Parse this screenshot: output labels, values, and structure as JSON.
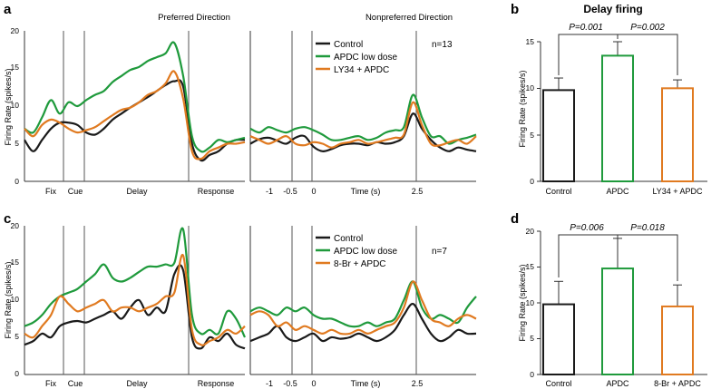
{
  "colors": {
    "control": "#1a1a1a",
    "apdc": "#1f9a3c",
    "drug": "#e07a20",
    "axis": "#333333",
    "marker": "#555555"
  },
  "panel_labels": [
    "a",
    "b",
    "c",
    "d"
  ],
  "chart_data": [
    {
      "type": "line",
      "id": "a",
      "headers": {
        "preferred": "Preferred Direction",
        "nonpreferred": "Nonpreferred Direction"
      },
      "ylabel": "Firing Rate (spikes/s)",
      "ylim": [
        0,
        20
      ],
      "yticks": [
        "0",
        "5",
        "10",
        "15",
        "20"
      ],
      "n_label": "n=13",
      "left_xlabels": [
        "Fix",
        "Cue",
        "Delay",
        "Response"
      ],
      "right_xlabels": [
        "-1",
        "-0.5",
        "0",
        "Time (s)",
        "2.5"
      ],
      "x_left": [
        0,
        4,
        8,
        12,
        16,
        20,
        24,
        28,
        32,
        36,
        40,
        44,
        48,
        52,
        56,
        60,
        64,
        68,
        72,
        76,
        80,
        84,
        88,
        92,
        96,
        100
      ],
      "x_right": [
        0,
        4,
        8,
        12,
        16,
        20,
        24,
        28,
        32,
        36,
        40,
        44,
        48,
        52,
        56,
        60,
        64,
        68,
        72,
        76,
        80,
        84,
        88,
        92,
        96,
        100
      ],
      "series": [
        {
          "name": "Control",
          "left": [
            5.5,
            4.0,
            5.5,
            7.0,
            7.8,
            7.8,
            7.5,
            6.5,
            6.2,
            7.0,
            8.2,
            9.0,
            9.8,
            10.5,
            11.2,
            12.0,
            12.8,
            13.3,
            12.6,
            5.0,
            2.8,
            3.5,
            4.0,
            5.0,
            5.5,
            5.5
          ],
          "right": [
            5.0,
            5.6,
            5.8,
            5.4,
            5.0,
            5.8,
            6.0,
            4.6,
            4.0,
            4.3,
            4.8,
            5.0,
            5.0,
            4.8,
            5.2,
            5.0,
            5.2,
            6.0,
            9.0,
            7.0,
            5.5,
            4.5,
            4.0,
            4.5,
            4.2,
            4.0
          ]
        },
        {
          "name": "APDC low dose",
          "left": [
            7.0,
            6.5,
            8.5,
            10.8,
            9.0,
            10.5,
            10.0,
            10.8,
            11.5,
            12.0,
            13.2,
            14.0,
            14.8,
            15.2,
            16.0,
            16.5,
            17.0,
            18.4,
            14.0,
            6.0,
            4.0,
            4.5,
            5.5,
            5.2,
            5.5,
            5.8
          ],
          "right": [
            7.0,
            6.5,
            7.2,
            6.8,
            6.5,
            7.0,
            7.2,
            6.8,
            6.2,
            5.5,
            5.5,
            5.8,
            6.0,
            5.5,
            5.8,
            6.5,
            6.8,
            7.2,
            11.5,
            8.5,
            6.0,
            6.0,
            5.0,
            5.5,
            5.8,
            6.2
          ]
        },
        {
          "name": "LY34 + APDC",
          "left": [
            7.0,
            6.0,
            7.5,
            8.2,
            7.8,
            7.0,
            6.5,
            6.8,
            7.2,
            8.0,
            8.8,
            9.5,
            9.8,
            10.5,
            11.5,
            12.0,
            13.0,
            14.6,
            11.0,
            4.0,
            3.0,
            4.0,
            4.5,
            5.0,
            5.0,
            5.2
          ],
          "right": [
            6.0,
            5.5,
            5.0,
            5.5,
            6.0,
            5.0,
            4.8,
            5.2,
            5.0,
            4.5,
            5.0,
            5.2,
            5.5,
            5.0,
            5.2,
            5.5,
            5.8,
            6.2,
            10.5,
            7.5,
            5.0,
            4.8,
            5.2,
            5.5,
            5.0,
            6.0
          ]
        }
      ]
    },
    {
      "type": "bar",
      "id": "b",
      "title": "Delay firing",
      "categories": [
        "Control",
        "APDC",
        "LY34 + APDC"
      ],
      "values": [
        9.8,
        13.5,
        10.0
      ],
      "errors": [
        1.3,
        1.5,
        0.9
      ],
      "ylabel": "Firing Rate (spikes/s)",
      "ylim": [
        0,
        15
      ],
      "yticks": [
        "0",
        "5",
        "10",
        "15"
      ],
      "p_labels": [
        "P=0.001",
        "P=0.002"
      ]
    },
    {
      "type": "line",
      "id": "c",
      "ylabel": "Firing Rate (spikes/s)",
      "ylim": [
        0,
        20
      ],
      "yticks": [
        "0",
        "5",
        "10",
        "15",
        "20"
      ],
      "n_label": "n=7",
      "left_xlabels": [
        "Fix",
        "Cue",
        "Delay",
        "Response"
      ],
      "right_xlabels": [
        "-1",
        "-0.5",
        "0",
        "Time (s)",
        "2.5"
      ],
      "x_left": [
        0,
        4,
        8,
        12,
        16,
        20,
        24,
        28,
        32,
        36,
        40,
        44,
        48,
        52,
        56,
        60,
        64,
        68,
        72,
        76,
        80,
        84,
        88,
        92,
        96,
        100
      ],
      "x_right": [
        0,
        4,
        8,
        12,
        16,
        20,
        24,
        28,
        32,
        36,
        40,
        44,
        48,
        52,
        56,
        60,
        64,
        68,
        72,
        76,
        80,
        84,
        88,
        92,
        96,
        100
      ],
      "series": [
        {
          "name": "Control",
          "left": [
            4.0,
            4.5,
            5.5,
            5.0,
            6.5,
            7.0,
            7.2,
            7.0,
            7.5,
            8.0,
            8.5,
            7.5,
            9.0,
            10.0,
            8.0,
            9.0,
            8.5,
            13.5,
            14.0,
            5.0,
            3.5,
            5.0,
            4.5,
            5.5,
            4.0,
            3.5
          ],
          "right": [
            4.5,
            5.0,
            5.5,
            6.5,
            5.0,
            4.5,
            5.0,
            5.5,
            4.5,
            5.0,
            4.8,
            5.0,
            5.5,
            5.0,
            4.5,
            5.0,
            6.0,
            8.0,
            9.5,
            7.5,
            5.5,
            4.5,
            5.0,
            6.0,
            5.5,
            5.5
          ]
        },
        {
          "name": "APDC low dose",
          "left": [
            6.5,
            7.0,
            8.0,
            9.5,
            10.5,
            11.0,
            11.5,
            12.5,
            13.5,
            14.8,
            13.0,
            12.5,
            13.0,
            13.8,
            14.5,
            14.5,
            14.8,
            15.0,
            19.5,
            8.0,
            5.5,
            6.0,
            5.5,
            8.5,
            7.5,
            5.0
          ],
          "right": [
            8.5,
            9.0,
            8.5,
            8.0,
            9.0,
            8.5,
            9.0,
            8.0,
            7.5,
            7.5,
            7.0,
            6.5,
            6.5,
            7.0,
            6.5,
            7.0,
            7.5,
            10.0,
            12.5,
            9.0,
            7.5,
            8.0,
            7.5,
            7.0,
            9.0,
            10.5
          ]
        },
        {
          "name": "8-Br + APDC",
          "left": [
            5.5,
            5.0,
            6.5,
            8.0,
            10.5,
            9.5,
            8.5,
            9.0,
            9.5,
            10.0,
            8.5,
            9.0,
            9.0,
            8.5,
            9.0,
            9.5,
            10.5,
            11.0,
            16.0,
            6.0,
            4.0,
            4.5,
            5.0,
            6.0,
            5.5,
            6.5
          ],
          "right": [
            8.0,
            8.5,
            8.0,
            6.5,
            7.0,
            6.0,
            6.5,
            6.0,
            5.5,
            6.0,
            5.5,
            5.5,
            6.0,
            5.5,
            6.0,
            6.5,
            7.0,
            9.0,
            12.5,
            10.0,
            7.5,
            7.0,
            6.5,
            7.5,
            8.0,
            7.5
          ]
        }
      ]
    },
    {
      "type": "bar",
      "id": "d",
      "categories": [
        "Control",
        "APDC",
        "8-Br + APDC"
      ],
      "values": [
        9.8,
        14.8,
        9.5
      ],
      "errors": [
        3.2,
        4.2,
        3.0
      ],
      "ylabel": "Firing Rate (spikes/s)",
      "ylim": [
        0,
        20
      ],
      "yticks": [
        "0",
        "5",
        "10",
        "15",
        "20"
      ],
      "p_labels": [
        "P=0.006",
        "P=0.018"
      ]
    }
  ]
}
